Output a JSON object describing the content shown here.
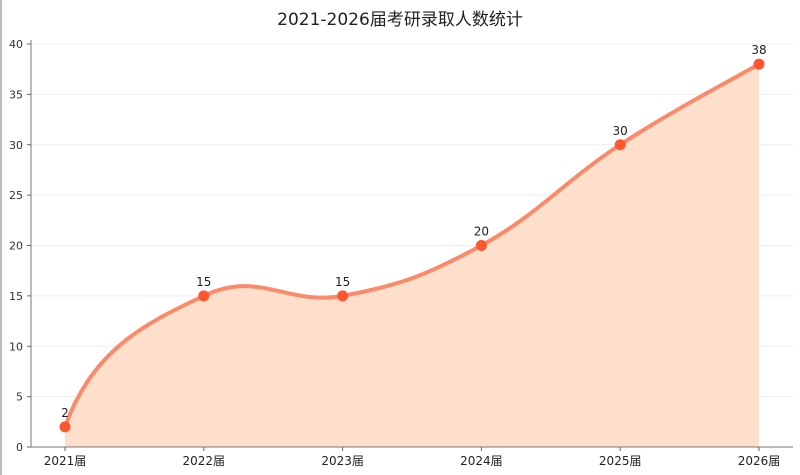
{
  "chart_data": {
    "type": "area",
    "title": "2021-2026届考研录取人数统计",
    "categories": [
      "2021届",
      "2022届",
      "2023届",
      "2024届",
      "2025届",
      "2026届"
    ],
    "values": [
      2,
      15,
      15,
      20,
      30,
      38
    ],
    "smooth": true,
    "ylim": [
      0,
      40
    ],
    "yticks": [
      0,
      5,
      10,
      15,
      20,
      25,
      30,
      35,
      40
    ],
    "grid": true,
    "data_labels": true,
    "colors": {
      "line": "#fa8a6a",
      "point": "#ff5630",
      "area": "#fddcc5",
      "grid": "#eeeeee"
    }
  }
}
